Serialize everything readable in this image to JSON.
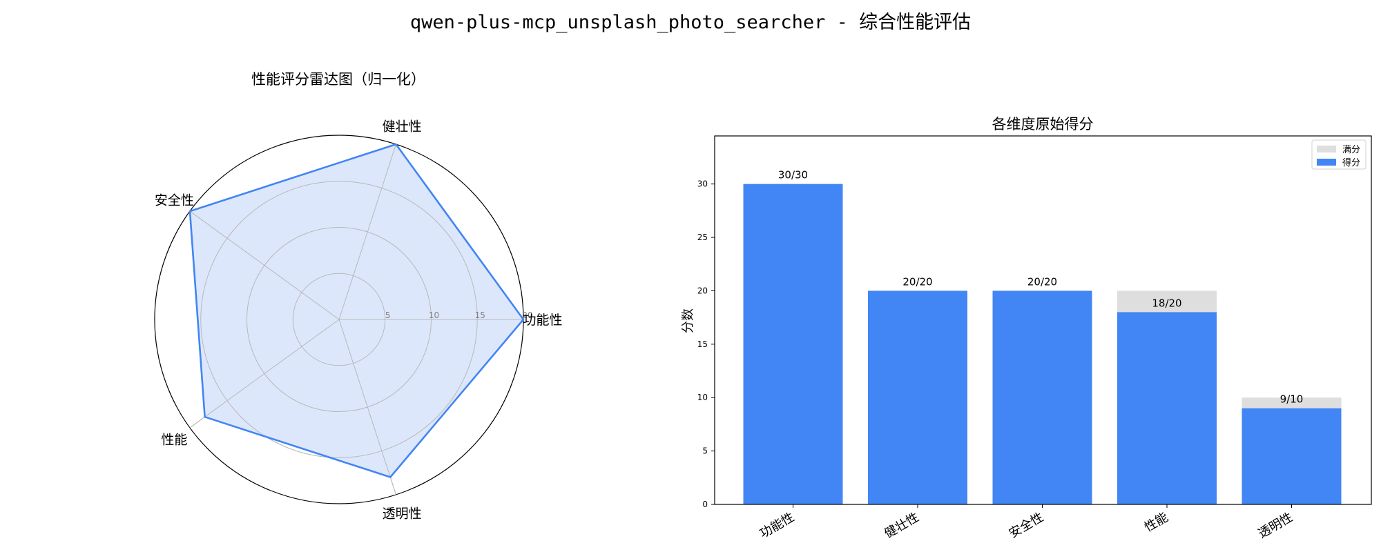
{
  "figure": {
    "title": "qwen-plus-mcp_unsplash_photo_searcher - 综合性能评估"
  },
  "chart_data": [
    {
      "type": "radar",
      "title": "性能评分雷达图（归一化）",
      "categories": [
        "功能性",
        "健壮性",
        "安全性",
        "性能",
        "透明性"
      ],
      "values": [
        20,
        20,
        20,
        18,
        18
      ],
      "rlim": [
        0,
        20
      ],
      "radial_ticks": [
        5,
        10,
        15
      ],
      "grid": true,
      "colors": {
        "line": "#4285f4",
        "fill": "#dbe6fb"
      }
    },
    {
      "type": "bar",
      "title": "各维度原始得分",
      "categories": [
        "功能性",
        "健壮性",
        "安全性",
        "性能",
        "透明性"
      ],
      "ylabel": "分数",
      "xlabel": "",
      "ylim": [
        0,
        34.5
      ],
      "yticks": [
        0,
        5,
        10,
        15,
        20,
        25,
        30
      ],
      "series": [
        {
          "name": "满分",
          "values": [
            30,
            20,
            20,
            20,
            10
          ],
          "color": "#dedede"
        },
        {
          "name": "得分",
          "values": [
            30,
            20,
            20,
            18,
            9
          ],
          "color": "#4285f4"
        }
      ],
      "data_labels": [
        "30/30",
        "20/20",
        "20/20",
        "18/20",
        "9/10"
      ],
      "legend": "top-right",
      "grid": false
    }
  ]
}
